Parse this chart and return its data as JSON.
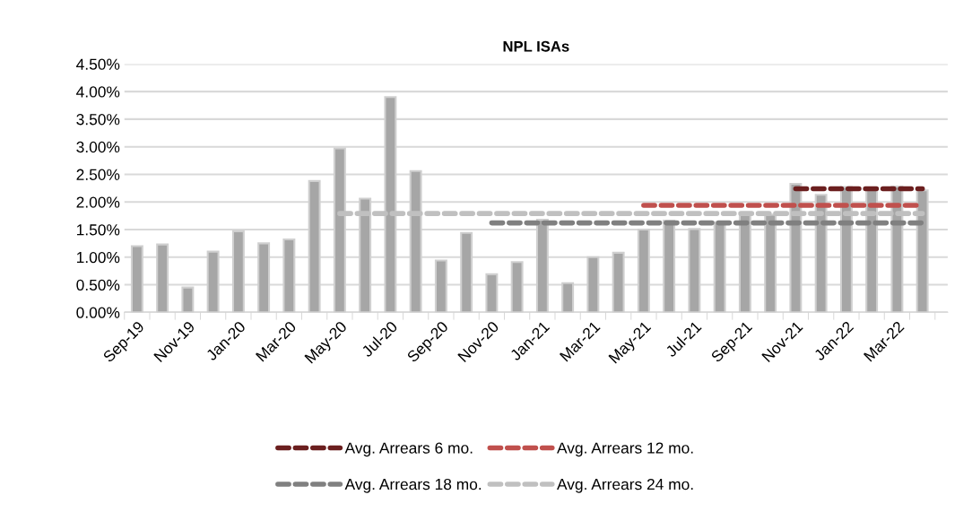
{
  "chart_data": {
    "type": "bar",
    "title": "NPL ISAs",
    "categories": [
      "Sep-19",
      null,
      "Nov-19",
      null,
      "Jan-20",
      null,
      "Mar-20",
      null,
      "May-20",
      null,
      "Jul-20",
      null,
      "Sep-20",
      null,
      "Nov-20",
      null,
      "Jan-21",
      null,
      "Mar-21",
      null,
      "May-21",
      null,
      "Jul-21",
      null,
      "Sep-21",
      null,
      "Nov-21",
      null,
      "Jan-22",
      null,
      "Mar-22",
      null
    ],
    "series": [
      {
        "color": "#a6a6a6",
        "values": [
          1.2,
          1.23,
          0.45,
          1.1,
          1.47,
          1.25,
          1.32,
          2.38,
          2.97,
          2.06,
          3.9,
          2.56,
          0.94,
          1.44,
          0.69,
          0.91,
          1.68,
          0.53,
          1.0,
          1.08,
          1.5,
          1.66,
          1.51,
          1.63,
          1.8,
          1.77,
          2.33,
          2.13,
          2.27,
          2.25,
          2.28,
          2.21
        ]
      },
      {
        "type": "line",
        "name": "Avg. Arrears 6 mo.",
        "color": "#6b1f1f",
        "line_style": "dashed",
        "values": [
          null,
          null,
          null,
          null,
          null,
          null,
          null,
          null,
          null,
          null,
          null,
          null,
          null,
          null,
          null,
          null,
          null,
          null,
          null,
          null,
          null,
          null,
          null,
          null,
          null,
          null,
          2.24,
          2.24,
          2.24,
          2.24,
          2.24,
          2.24
        ]
      },
      {
        "type": "line",
        "name": "Avg. Arrears 12 mo.",
        "color": "#c0504d",
        "line_style": "dashed",
        "values": [
          null,
          null,
          null,
          null,
          null,
          null,
          null,
          null,
          null,
          null,
          null,
          null,
          null,
          null,
          null,
          null,
          null,
          null,
          null,
          null,
          1.94,
          1.94,
          1.94,
          1.94,
          1.94,
          1.94,
          1.94,
          1.94,
          1.94,
          1.94,
          1.94,
          1.94
        ]
      },
      {
        "type": "line",
        "name": "Avg. Arrears 18 mo.",
        "color": "#808080",
        "line_style": "dashed",
        "values": [
          null,
          null,
          null,
          null,
          null,
          null,
          null,
          null,
          null,
          null,
          null,
          null,
          null,
          null,
          1.62,
          1.62,
          1.62,
          1.62,
          1.62,
          1.62,
          1.62,
          1.62,
          1.62,
          1.62,
          1.62,
          1.62,
          1.62,
          1.62,
          1.62,
          1.62,
          1.62,
          1.62
        ]
      },
      {
        "type": "line",
        "name": "Avg. Arrears 24 mo.",
        "color": "#c0c0c0",
        "line_style": "dashed",
        "values": [
          null,
          null,
          null,
          null,
          null,
          null,
          null,
          null,
          1.79,
          1.79,
          1.79,
          1.79,
          1.79,
          1.79,
          1.79,
          1.79,
          1.79,
          1.79,
          1.79,
          1.79,
          1.79,
          1.79,
          1.79,
          1.79,
          1.79,
          1.79,
          1.79,
          1.79,
          1.79,
          1.79,
          1.79,
          1.79
        ]
      }
    ],
    "ylim": [
      0,
      4.5
    ],
    "yticks": [
      {
        "value": 0,
        "label": "0.00%"
      },
      {
        "value": 0.5,
        "label": "0.50%"
      },
      {
        "value": 1,
        "label": "1.00%"
      },
      {
        "value": 1.5,
        "label": "1.50%"
      },
      {
        "value": 2,
        "label": "2.00%"
      },
      {
        "value": 2.5,
        "label": "2.50%"
      },
      {
        "value": 3,
        "label": "3.00%"
      },
      {
        "value": 3.5,
        "label": "3.50%"
      },
      {
        "value": 4,
        "label": "4.00%"
      },
      {
        "value": 4.5,
        "label": "4.50%"
      }
    ],
    "grid": "y",
    "legend": "bottom"
  }
}
